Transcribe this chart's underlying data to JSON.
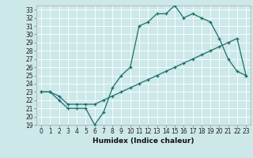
{
  "xlabel": "Humidex (Indice chaleur)",
  "ylabel": "",
  "bg_color": "#cce8e8",
  "grid_color": "#ffffff",
  "line_color": "#1a6e6e",
  "xlim": [
    -0.5,
    23.5
  ],
  "ylim": [
    19,
    33.5
  ],
  "xticks": [
    0,
    1,
    2,
    3,
    4,
    5,
    6,
    7,
    8,
    9,
    10,
    11,
    12,
    13,
    14,
    15,
    16,
    17,
    18,
    19,
    20,
    21,
    22,
    23
  ],
  "yticks": [
    19,
    20,
    21,
    22,
    23,
    24,
    25,
    26,
    27,
    28,
    29,
    30,
    31,
    32,
    33
  ],
  "line1_x": [
    0,
    1,
    2,
    3,
    4,
    5,
    6,
    7,
    8,
    9,
    10,
    11,
    12,
    13,
    14,
    15,
    16,
    17,
    18,
    19,
    20,
    21,
    22,
    23
  ],
  "line1_y": [
    23,
    23,
    22,
    21,
    21,
    21,
    19,
    20.5,
    23.5,
    25,
    26,
    31,
    31.5,
    32.5,
    32.5,
    33.5,
    32,
    32.5,
    32,
    31.5,
    29.5,
    27,
    25.5,
    25
  ],
  "line2_x": [
    0,
    1,
    2,
    3,
    4,
    5,
    6,
    7,
    8,
    9,
    10,
    11,
    12,
    13,
    14,
    15,
    16,
    17,
    18,
    19,
    20,
    21,
    22,
    23
  ],
  "line2_y": [
    23,
    23,
    22.5,
    21.5,
    21.5,
    21.5,
    21.5,
    22,
    22.5,
    23,
    23.5,
    24,
    24.5,
    25,
    25.5,
    26,
    26.5,
    27,
    27.5,
    28,
    28.5,
    29,
    29.5,
    25
  ],
  "tick_fontsize": 5.5,
  "xlabel_fontsize": 6.5,
  "spine_color": "#aaaaaa"
}
